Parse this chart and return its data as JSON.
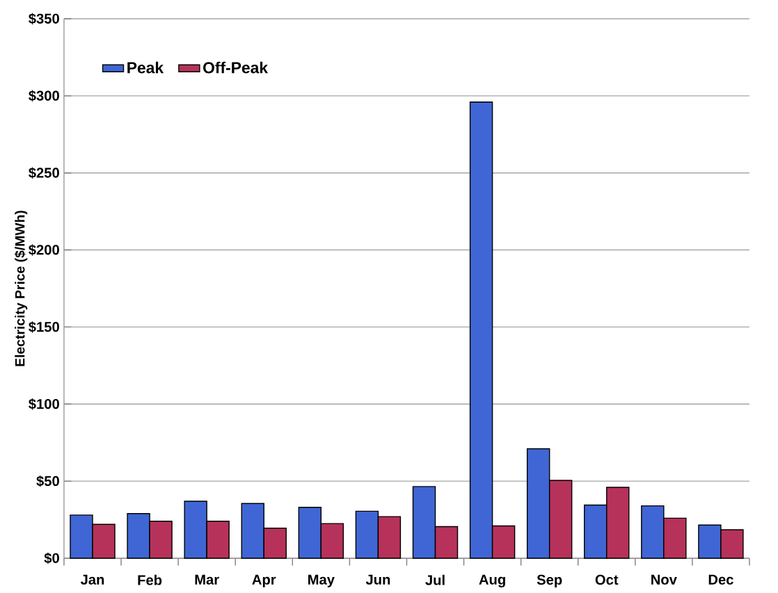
{
  "chart_data": {
    "type": "bar",
    "ylabel": "Electricity Price ($/MWh)",
    "categories": [
      "Jan",
      "Feb",
      "Mar",
      "Apr",
      "May",
      "Jun",
      "Jul",
      "Aug",
      "Sep",
      "Oct",
      "Nov",
      "Dec"
    ],
    "series": [
      {
        "name": "Peak",
        "color": "#3f66d4",
        "values": [
          28,
          29,
          37,
          35.5,
          33,
          30.5,
          46.5,
          296,
          71,
          34.5,
          34,
          21.5
        ]
      },
      {
        "name": "Off-Peak",
        "color": "#b7325a",
        "values": [
          22,
          24,
          24,
          19.5,
          22.5,
          27,
          20.5,
          21,
          50.5,
          46,
          26,
          18.5
        ]
      }
    ],
    "ylim": [
      0,
      350
    ],
    "yticks": [
      {
        "value": 0,
        "label": "$0"
      },
      {
        "value": 50,
        "label": "$50"
      },
      {
        "value": 100,
        "label": "$100"
      },
      {
        "value": 150,
        "label": "$150"
      },
      {
        "value": 200,
        "label": "$200"
      },
      {
        "value": 250,
        "label": "$250"
      },
      {
        "value": 300,
        "label": "$300"
      },
      {
        "value": 350,
        "label": "$350"
      }
    ],
    "grid": "y",
    "legend": "top left"
  }
}
